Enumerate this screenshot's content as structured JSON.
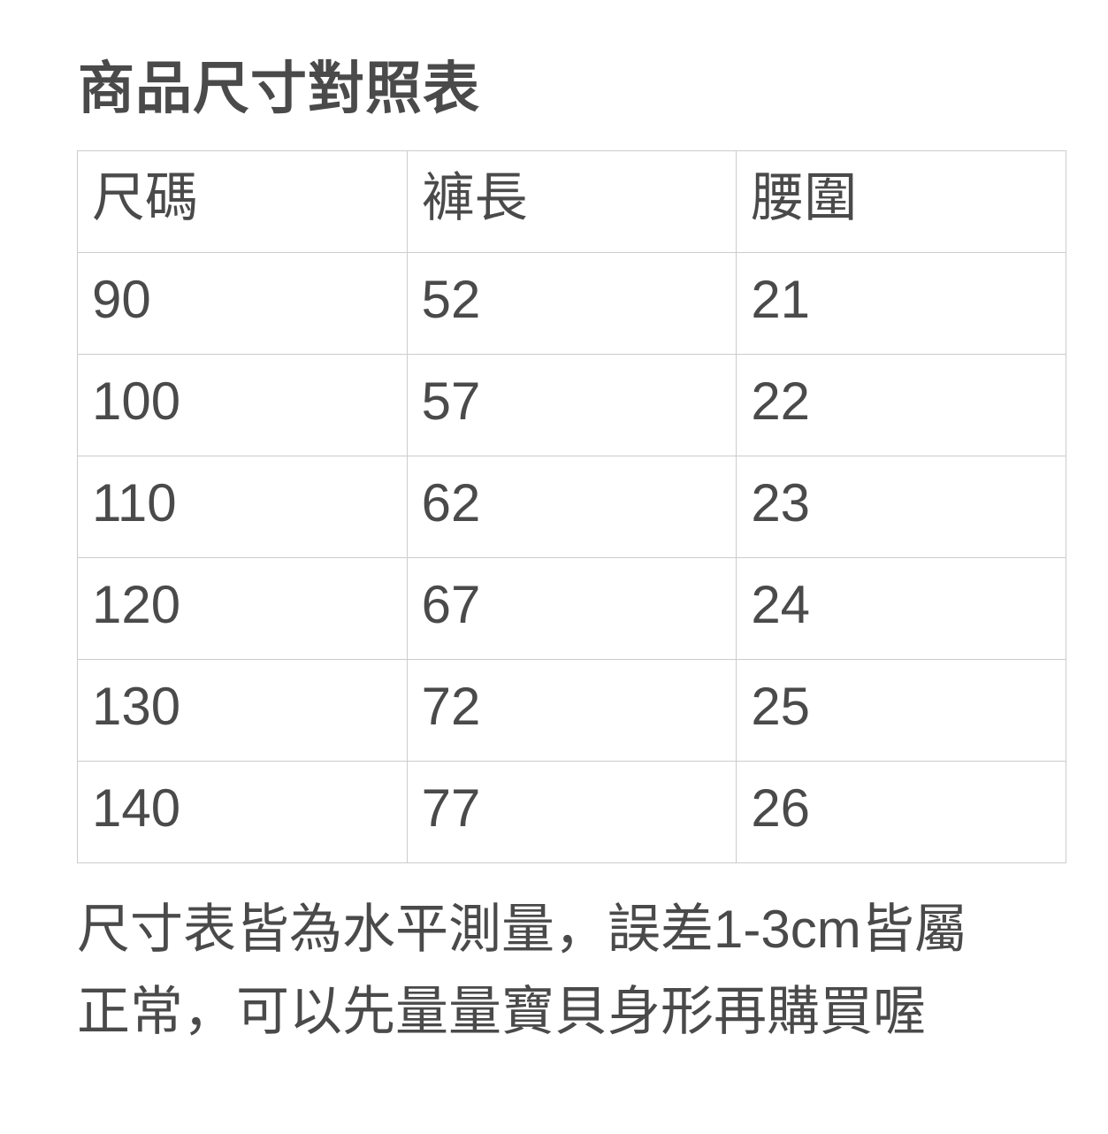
{
  "page": {
    "title": "商品尺寸對照表",
    "text_color": "#4a4a4a",
    "border_color": "#cccccc",
    "background_color": "#ffffff"
  },
  "size_table": {
    "columns": [
      "尺碼",
      "褲長",
      "腰圍"
    ],
    "rows": [
      [
        "90",
        "52",
        "21"
      ],
      [
        "100",
        "57",
        "22"
      ],
      [
        "110",
        "62",
        "23"
      ],
      [
        "120",
        "67",
        "24"
      ],
      [
        "130",
        "72",
        "25"
      ],
      [
        "140",
        "77",
        "26"
      ]
    ]
  },
  "footer": {
    "full_text": "尺寸表皆為水平測量，誤差1-3cm皆屬正常，可以先量量寶貝身形再購買喔",
    "lines": [
      "尺寸表皆為水平測量，誤差1-3cm皆屬",
      "正常，可以先量量寶貝身形再購買喔"
    ]
  }
}
